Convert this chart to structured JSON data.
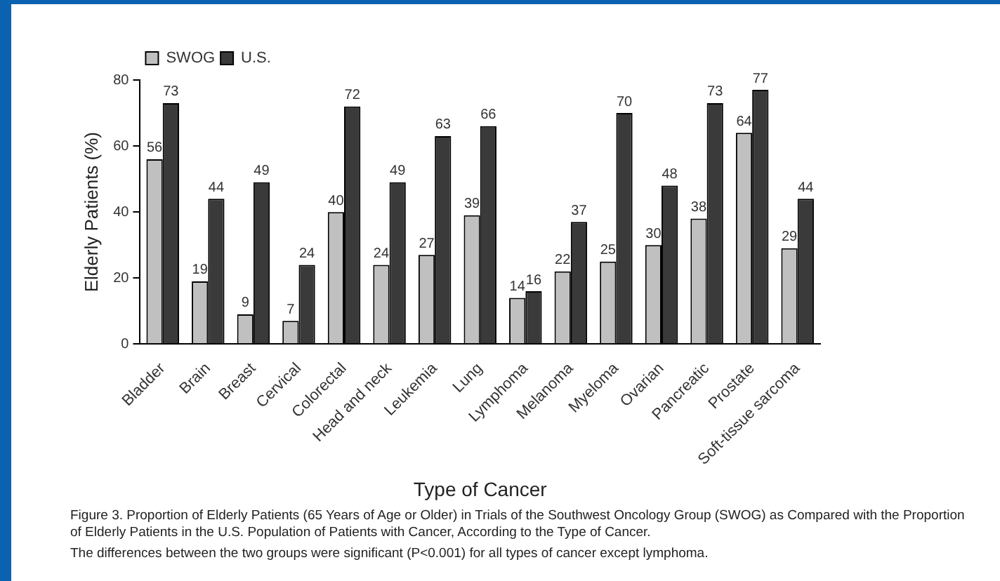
{
  "chart_data": {
    "type": "bar",
    "xlabel": "Type of Cancer",
    "ylabel": "Elderly Patients (%)",
    "categories": [
      "Bladder",
      "Brain",
      "Breast",
      "Cervical",
      "Colorectal",
      "Head and neck",
      "Leukemia",
      "Lung",
      "Lymphoma",
      "Melanoma",
      "Myeloma",
      "Ovarian",
      "Pancreatic",
      "Prostate",
      "Soft-tissue sarcoma"
    ],
    "series": [
      {
        "name": "SWOG",
        "color": "#c0c0c0",
        "values": [
          56,
          19,
          9,
          7,
          40,
          24,
          27,
          39,
          14,
          22,
          25,
          30,
          38,
          64,
          29
        ]
      },
      {
        "name": "U.S.",
        "color": "#3a3a3a",
        "values": [
          73,
          44,
          49,
          24,
          72,
          49,
          63,
          66,
          16,
          37,
          70,
          48,
          73,
          77,
          44
        ]
      }
    ],
    "ylim": [
      0,
      80
    ],
    "yticks": [
      0,
      20,
      40,
      60,
      80
    ],
    "grid": false,
    "legend": "top left",
    "data_labels": true,
    "annotations": [
      "Figure 3. Proportion of Elderly Patients (65 Years of Age or Older) in Trials of the Southwest Oncology Group (SWOG) as Compared with the Proportion of Elderly Patients in the U.S. Population of Patients with Cancer, According to the Type of Cancer.",
      "The differences between the two groups were significant (P<0.001) for all types of cancer except lymphoma."
    ]
  }
}
